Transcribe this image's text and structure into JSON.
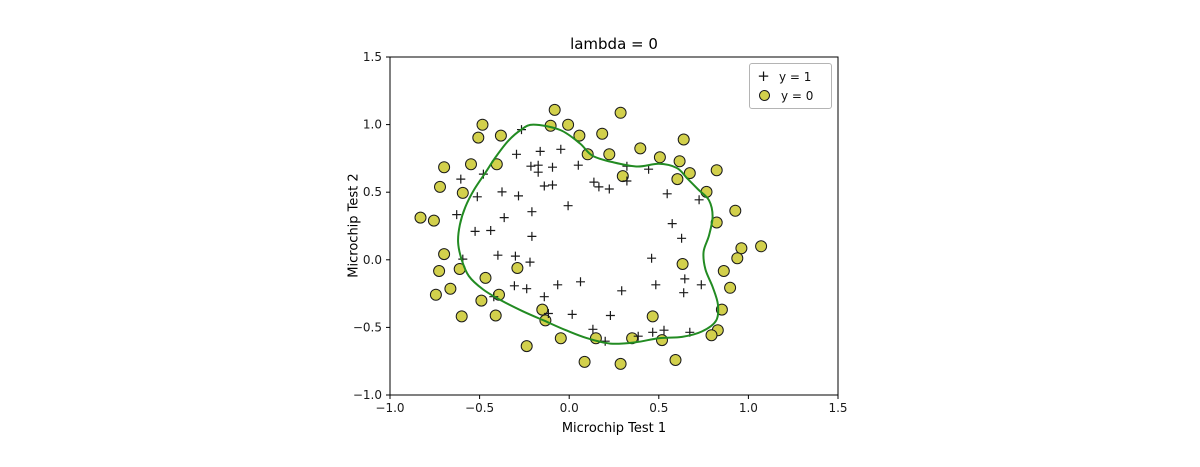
{
  "figure": {
    "title": "lambda = 0",
    "xlabel": "Microchip Test 1",
    "ylabel": "Microchip Test 2",
    "legend": [
      {
        "label": "y = 1",
        "marker": "plus"
      },
      {
        "label": "y = 0",
        "marker": "circle"
      }
    ],
    "colors": {
      "pos_marker": "#1a1a1a",
      "neg_fill": "#d2d04c",
      "neg_edge": "#1a1a1a",
      "boundary": "#228b22",
      "axis": "#000000"
    }
  },
  "chart_data": {
    "type": "scatter",
    "title": "lambda = 0",
    "xlabel": "Microchip Test 1",
    "ylabel": "Microchip Test 2",
    "xlim": [
      -1.0,
      1.5
    ],
    "ylim": [
      -1.0,
      1.5
    ],
    "xticks": [
      -1.0,
      -0.5,
      0.0,
      0.5,
      1.0,
      1.5
    ],
    "yticks": [
      -1.0,
      -0.5,
      0.0,
      0.5,
      1.0,
      1.5
    ],
    "xtick_labels": [
      "−1.0",
      "−0.5",
      "0.0",
      "0.5",
      "1.0",
      "1.5"
    ],
    "ytick_labels": [
      "−1.0",
      "−0.5",
      "0.0",
      "0.5",
      "1.0",
      "1.5"
    ],
    "grid": false,
    "legend_position": "upper right",
    "series": [
      {
        "name": "y = 1",
        "marker": "+",
        "color": "#1a1a1a",
        "points": [
          [
            0.051,
            0.7
          ],
          [
            -0.093,
            0.685
          ],
          [
            -0.214,
            0.692
          ],
          [
            -0.375,
            0.502
          ],
          [
            -0.513,
            0.466
          ],
          [
            -0.525,
            0.21
          ],
          [
            -0.398,
            0.034
          ],
          [
            -0.306,
            -0.192
          ],
          [
            0.017,
            -0.404
          ],
          [
            0.132,
            -0.514
          ],
          [
            0.385,
            -0.565
          ],
          [
            0.529,
            -0.521
          ],
          [
            0.639,
            -0.243
          ],
          [
            0.737,
            -0.185
          ],
          [
            0.547,
            0.488
          ],
          [
            0.322,
            0.583
          ],
          [
            0.166,
            0.539
          ],
          [
            -0.047,
            0.817
          ],
          [
            -0.173,
            0.7
          ],
          [
            -0.479,
            0.634
          ],
          [
            -0.605,
            0.597
          ],
          [
            -0.628,
            0.334
          ],
          [
            -0.594,
            0.005
          ],
          [
            -0.421,
            -0.273
          ],
          [
            -0.116,
            -0.397
          ],
          [
            0.201,
            -0.602
          ],
          [
            0.466,
            -0.536
          ],
          [
            0.673,
            -0.536
          ],
          [
            -0.139,
            0.546
          ],
          [
            -0.294,
            0.78
          ],
          [
            -0.266,
            0.963
          ],
          [
            -0.162,
            0.802
          ],
          [
            -0.173,
            0.648
          ],
          [
            -0.283,
            0.473
          ],
          [
            -0.363,
            0.312
          ],
          [
            -0.3,
            0.027
          ],
          [
            -0.237,
            -0.214
          ],
          [
            -0.064,
            -0.185
          ],
          [
            0.063,
            -0.163
          ],
          [
            0.23,
            -0.412
          ],
          [
            0.293,
            -0.229
          ],
          [
            0.483,
            -0.185
          ],
          [
            0.645,
            -0.141
          ],
          [
            0.46,
            0.012
          ],
          [
            0.627,
            0.159
          ],
          [
            0.575,
            0.268
          ],
          [
            0.725,
            0.444
          ],
          [
            0.224,
            0.524
          ],
          [
            0.443,
            0.67
          ],
          [
            0.322,
            0.692
          ],
          [
            0.138,
            0.575
          ],
          [
            -0.006,
            0.4
          ],
          [
            -0.093,
            0.553
          ],
          [
            -0.208,
            0.356
          ],
          [
            -0.208,
            0.173
          ],
          [
            -0.438,
            0.217
          ],
          [
            -0.219,
            -0.017
          ],
          [
            -0.139,
            -0.273
          ]
        ]
      },
      {
        "name": "y = 0",
        "marker": "o",
        "color": "#d2d04c",
        "points": [
          [
            0.184,
            0.933
          ],
          [
            0.224,
            0.78
          ],
          [
            0.299,
            0.619
          ],
          [
            0.506,
            0.758
          ],
          [
            0.616,
            0.729
          ],
          [
            0.604,
            0.597
          ],
          [
            0.766,
            0.502
          ],
          [
            0.927,
            0.363
          ],
          [
            0.823,
            0.276
          ],
          [
            0.961,
            0.086
          ],
          [
            0.938,
            0.012
          ],
          [
            0.863,
            -0.083
          ],
          [
            0.898,
            -0.207
          ],
          [
            0.852,
            -0.368
          ],
          [
            0.829,
            -0.521
          ],
          [
            0.794,
            -0.558
          ],
          [
            0.593,
            -0.741
          ],
          [
            0.518,
            -0.594
          ],
          [
            0.466,
            -0.419
          ],
          [
            0.351,
            -0.58
          ],
          [
            0.287,
            -0.77
          ],
          [
            0.086,
            -0.755
          ],
          [
            0.149,
            -0.58
          ],
          [
            -0.133,
            -0.448
          ],
          [
            -0.41,
            -0.412
          ],
          [
            -0.392,
            -0.258
          ],
          [
            -0.744,
            -0.258
          ],
          [
            -0.698,
            0.042
          ],
          [
            -0.755,
            0.29
          ],
          [
            -0.698,
            0.685
          ],
          [
            -0.404,
            0.707
          ],
          [
            -0.381,
            0.919
          ],
          [
            -0.507,
            0.904
          ],
          [
            -0.548,
            0.707
          ],
          [
            0.103,
            0.78
          ],
          [
            0.057,
            0.919
          ],
          [
            -0.104,
            0.992
          ],
          [
            -0.081,
            1.109
          ],
          [
            0.287,
            1.087
          ],
          [
            0.397,
            0.824
          ],
          [
            0.639,
            0.89
          ],
          [
            0.823,
            0.663
          ],
          [
            0.673,
            0.641
          ],
          [
            1.071,
            0.1
          ],
          [
            -0.047,
            -0.58
          ],
          [
            -0.237,
            -0.638
          ],
          [
            -0.15,
            -0.368
          ],
          [
            -0.49,
            -0.302
          ],
          [
            -0.467,
            -0.134
          ],
          [
            -0.289,
            -0.061
          ],
          [
            -0.611,
            -0.068
          ],
          [
            -0.663,
            -0.214
          ],
          [
            -0.6,
            -0.419
          ],
          [
            -0.726,
            -0.083
          ],
          [
            -0.83,
            0.312
          ],
          [
            -0.721,
            0.539
          ],
          [
            -0.594,
            0.495
          ],
          [
            -0.484,
            0.999
          ],
          [
            -0.006,
            0.999
          ],
          [
            0.633,
            -0.031
          ]
        ]
      }
    ],
    "boundary": {
      "name": "decision boundary",
      "color": "#228b22",
      "closed": true,
      "points": [
        [
          -0.2,
          1.0
        ],
        [
          -0.05,
          0.96
        ],
        [
          0.06,
          0.86
        ],
        [
          0.13,
          0.77
        ],
        [
          0.25,
          0.72
        ],
        [
          0.38,
          0.69
        ],
        [
          0.5,
          0.71
        ],
        [
          0.6,
          0.68
        ],
        [
          0.66,
          0.6
        ],
        [
          0.72,
          0.52
        ],
        [
          0.78,
          0.44
        ],
        [
          0.8,
          0.32
        ],
        [
          0.78,
          0.18
        ],
        [
          0.75,
          0.06
        ],
        [
          0.76,
          -0.07
        ],
        [
          0.8,
          -0.2
        ],
        [
          0.83,
          -0.33
        ],
        [
          0.82,
          -0.45
        ],
        [
          0.74,
          -0.53
        ],
        [
          0.63,
          -0.57
        ],
        [
          0.5,
          -0.58
        ],
        [
          0.37,
          -0.61
        ],
        [
          0.23,
          -0.62
        ],
        [
          0.1,
          -0.58
        ],
        [
          -0.02,
          -0.52
        ],
        [
          -0.14,
          -0.45
        ],
        [
          -0.26,
          -0.38
        ],
        [
          -0.38,
          -0.3
        ],
        [
          -0.48,
          -0.22
        ],
        [
          -0.56,
          -0.12
        ],
        [
          -0.6,
          0.0
        ],
        [
          -0.62,
          0.13
        ],
        [
          -0.61,
          0.26
        ],
        [
          -0.58,
          0.39
        ],
        [
          -0.53,
          0.52
        ],
        [
          -0.47,
          0.64
        ],
        [
          -0.41,
          0.76
        ],
        [
          -0.34,
          0.88
        ],
        [
          -0.27,
          0.96
        ]
      ]
    }
  }
}
